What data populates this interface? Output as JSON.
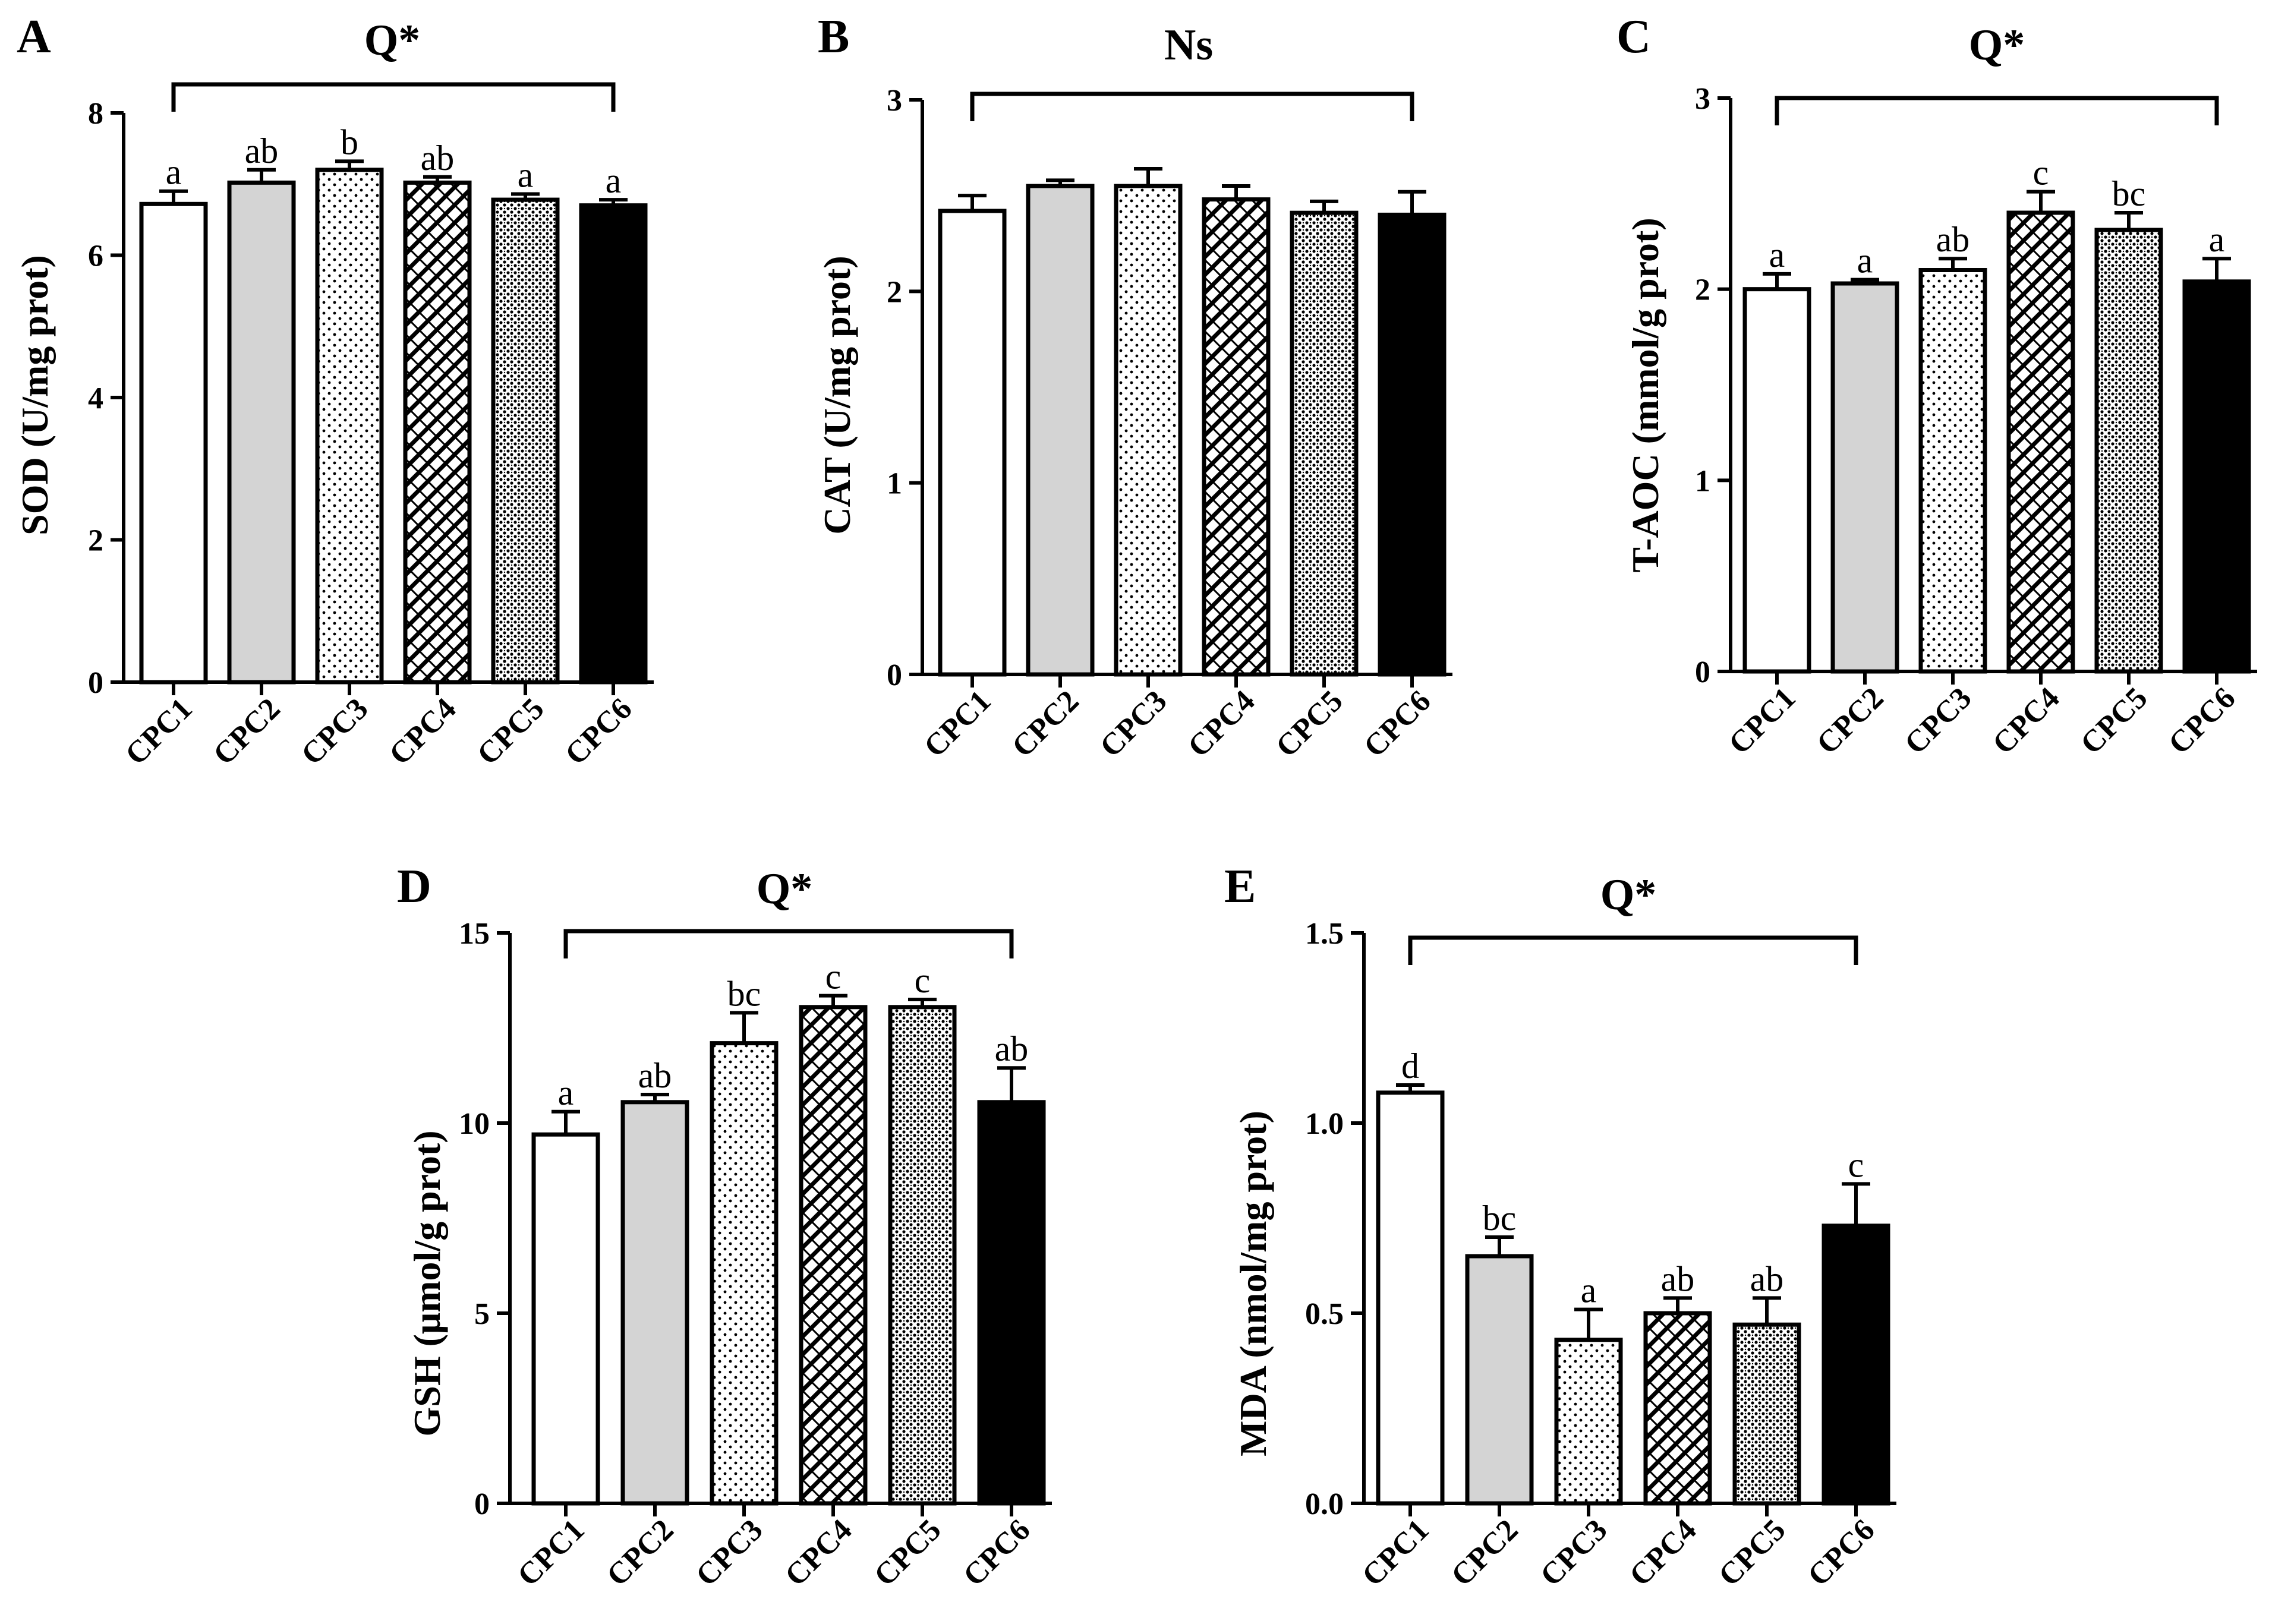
{
  "figure": {
    "patterns": [
      "white",
      "gray",
      "dots",
      "crosshatch",
      "dense-dots",
      "black"
    ]
  },
  "chart_data": [
    {
      "panel": "A",
      "type": "bar",
      "title": "Q*",
      "ylabel": "SOD (U/mg prot)",
      "xlabel": "",
      "categories": [
        "CPC1",
        "CPC2",
        "CPC3",
        "CPC4",
        "CPC5",
        "CPC6"
      ],
      "values": [
        6.72,
        7.02,
        7.2,
        7.02,
        6.78,
        6.7
      ],
      "errors": [
        0.18,
        0.18,
        0.12,
        0.08,
        0.08,
        0.08
      ],
      "labels": [
        "a",
        "ab",
        "b",
        "ab",
        "a",
        "a"
      ],
      "ylim": [
        0,
        8
      ],
      "yticks": [
        0,
        2,
        4,
        6,
        8
      ],
      "ytick_labels": [
        "0",
        "2",
        "4",
        "6",
        "8"
      ]
    },
    {
      "panel": "B",
      "type": "bar",
      "title": "Ns",
      "ylabel": "CAT (U/mg prot)",
      "xlabel": "",
      "categories": [
        "CPC1",
        "CPC2",
        "CPC3",
        "CPC4",
        "CPC5",
        "CPC6"
      ],
      "values": [
        2.42,
        2.55,
        2.55,
        2.48,
        2.41,
        2.4
      ],
      "errors": [
        0.08,
        0.03,
        0.09,
        0.07,
        0.06,
        0.12
      ],
      "labels": [
        "",
        "",
        "",
        "",
        "",
        ""
      ],
      "ylim": [
        0,
        3
      ],
      "yticks": [
        0,
        1,
        2,
        3
      ],
      "ytick_labels": [
        "0",
        "1",
        "2",
        "3"
      ]
    },
    {
      "panel": "C",
      "type": "bar",
      "title": "Q*",
      "ylabel": "T-AOC (mmol/g prot)",
      "xlabel": "",
      "categories": [
        "CPC1",
        "CPC2",
        "CPC3",
        "CPC4",
        "CPC5",
        "CPC6"
      ],
      "values": [
        2.0,
        2.03,
        2.1,
        2.4,
        2.31,
        2.04
      ],
      "errors": [
        0.08,
        0.02,
        0.06,
        0.11,
        0.09,
        0.12
      ],
      "labels": [
        "a",
        "a",
        "ab",
        "c",
        "bc",
        "a"
      ],
      "ylim": [
        0,
        3
      ],
      "yticks": [
        0,
        1,
        2,
        3
      ],
      "ytick_labels": [
        "0",
        "1",
        "2",
        "3"
      ]
    },
    {
      "panel": "D",
      "type": "bar",
      "title": "Q*",
      "ylabel": "GSH (μmol/g prot)",
      "xlabel": "",
      "categories": [
        "CPC1",
        "CPC2",
        "CPC3",
        "CPC4",
        "CPC5",
        "CPC6"
      ],
      "values": [
        9.7,
        10.55,
        12.1,
        13.05,
        13.05,
        10.55
      ],
      "errors": [
        0.6,
        0.2,
        0.8,
        0.3,
        0.2,
        0.9
      ],
      "labels": [
        "a",
        "ab",
        "bc",
        "c",
        "c",
        "ab"
      ],
      "ylim": [
        0,
        15
      ],
      "yticks": [
        0,
        5,
        10,
        15
      ],
      "ytick_labels": [
        "0",
        "5",
        "10",
        "15"
      ]
    },
    {
      "panel": "E",
      "type": "bar",
      "title": "Q*",
      "ylabel": "MDA (nmol/mg prot)",
      "xlabel": "",
      "categories": [
        "CPC1",
        "CPC2",
        "CPC3",
        "CPC4",
        "CPC5",
        "CPC6"
      ],
      "values": [
        1.08,
        0.65,
        0.43,
        0.5,
        0.47,
        0.73
      ],
      "errors": [
        0.02,
        0.05,
        0.08,
        0.04,
        0.07,
        0.11
      ],
      "labels": [
        "d",
        "bc",
        "a",
        "ab",
        "ab",
        "c"
      ],
      "ylim": [
        0,
        1.5
      ],
      "yticks": [
        0,
        0.5,
        1.0,
        1.5
      ],
      "ytick_labels": [
        "0.0",
        "0.5",
        "1.0",
        "1.5"
      ]
    }
  ]
}
